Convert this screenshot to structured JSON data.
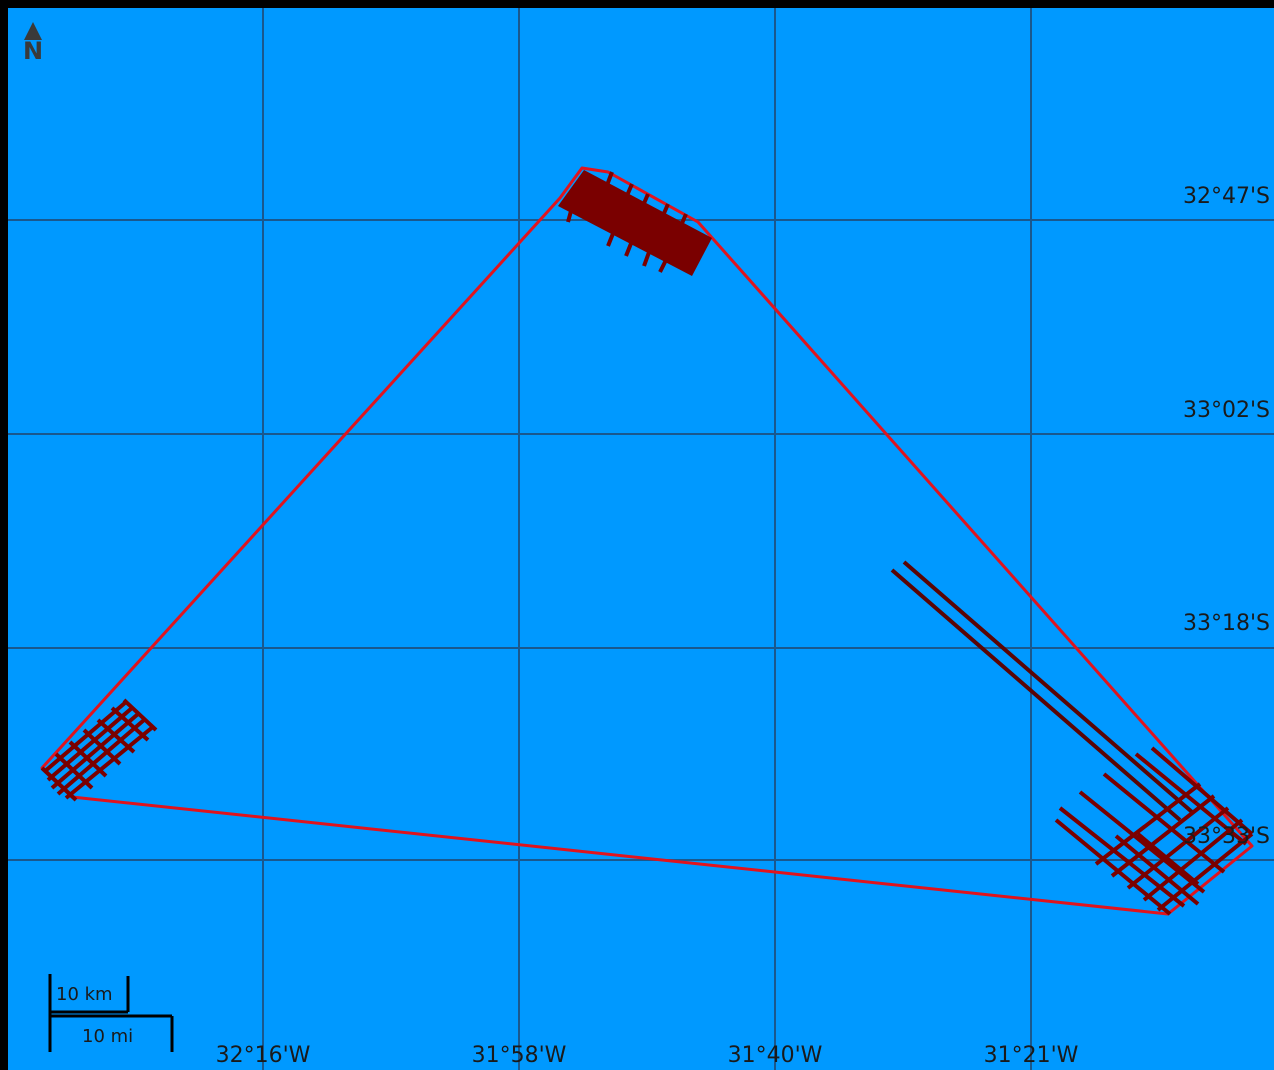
{
  "map": {
    "north_label": "N",
    "scale_km": "10 km",
    "scale_mi": "10 mi",
    "lat_labels": [
      "32°47'S",
      "33°02'S",
      "33°18'S",
      "33°33'S"
    ],
    "lon_labels": [
      "32°16'W",
      "31°58'W",
      "31°40'W",
      "31°21'W"
    ],
    "colors": {
      "ocean": "#0099ff",
      "grid": "#1f4d7a",
      "survey_polygon": "#e0141e",
      "tracklines": "#7a0000"
    }
  }
}
